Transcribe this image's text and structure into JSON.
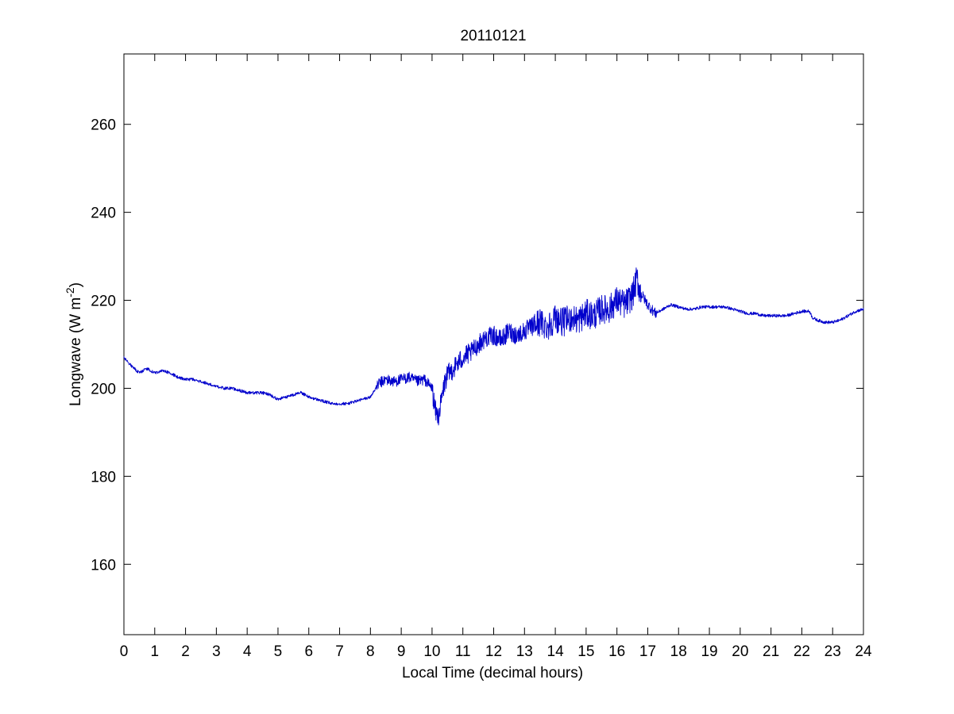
{
  "chart_data": {
    "type": "line",
    "title": "20110121",
    "xlabel": "Local Time (decimal hours)",
    "ylabel": {
      "base": "Longwave (W m",
      "sup": "-2",
      "close": ")"
    },
    "xlim": [
      0,
      24
    ],
    "ylim": [
      144,
      276
    ],
    "xticks": [
      "0",
      "1",
      "2",
      "3",
      "4",
      "5",
      "6",
      "7",
      "8",
      "9",
      "10",
      "11",
      "12",
      "13",
      "14",
      "15",
      "16",
      "17",
      "18",
      "19",
      "20",
      "21",
      "22",
      "23",
      "24"
    ],
    "yticks": [
      "160",
      "180",
      "200",
      "220",
      "240",
      "260"
    ],
    "grid": false,
    "series": [
      {
        "color": "#0000cc",
        "x": [
          0,
          0.25,
          0.5,
          0.75,
          1.0,
          1.25,
          1.5,
          1.75,
          2.0,
          2.25,
          2.5,
          2.75,
          3.0,
          3.25,
          3.5,
          3.75,
          4.0,
          4.25,
          4.5,
          4.75,
          5.0,
          5.25,
          5.5,
          5.75,
          6.0,
          6.25,
          6.5,
          6.75,
          7.0,
          7.25,
          7.5,
          7.75,
          8.0,
          8.25,
          8.5,
          8.75,
          9.0,
          9.25,
          9.5,
          9.75,
          10.0,
          10.1,
          10.2,
          10.3,
          10.4,
          10.5,
          10.75,
          11.0,
          11.25,
          11.5,
          11.75,
          12.0,
          12.25,
          12.5,
          12.75,
          13.0,
          13.25,
          13.5,
          13.75,
          14.0,
          14.25,
          14.5,
          14.75,
          15.0,
          15.25,
          15.5,
          15.75,
          16.0,
          16.25,
          16.5,
          16.65,
          16.75,
          17.0,
          17.25,
          17.5,
          17.75,
          18.0,
          18.25,
          18.5,
          18.75,
          19.0,
          19.25,
          19.5,
          19.75,
          20.0,
          20.25,
          20.5,
          20.75,
          21.0,
          21.25,
          21.5,
          21.75,
          22.0,
          22.25,
          22.35,
          22.5,
          22.75,
          23.0,
          23.25,
          23.5,
          23.75,
          24.0
        ],
        "y": [
          207,
          205,
          203.5,
          204.5,
          203.5,
          204,
          203.5,
          202.5,
          202,
          202,
          201.5,
          201,
          200.5,
          200,
          200,
          199.5,
          199,
          199,
          199,
          198.5,
          197.5,
          198,
          198.5,
          199,
          198,
          197.5,
          197,
          196.5,
          196.5,
          196.5,
          197,
          197.5,
          198,
          201,
          202,
          201.5,
          202,
          202.5,
          201.5,
          202,
          200,
          195,
          193.5,
          197,
          201,
          203,
          205,
          207,
          208,
          210,
          211.5,
          212,
          211,
          213,
          212,
          213,
          214,
          215,
          214,
          216,
          215,
          216,
          215.5,
          217,
          216.5,
          218,
          218,
          220,
          219,
          221,
          225,
          222,
          219,
          217,
          218,
          219,
          218.5,
          218,
          218,
          218.5,
          218.5,
          218.5,
          218.5,
          218,
          217.5,
          217,
          217,
          216.5,
          216.5,
          216.5,
          216.5,
          217,
          217.5,
          217.5,
          216,
          215.5,
          215,
          215,
          215.5,
          216.5,
          217.5,
          218
        ]
      }
    ]
  }
}
